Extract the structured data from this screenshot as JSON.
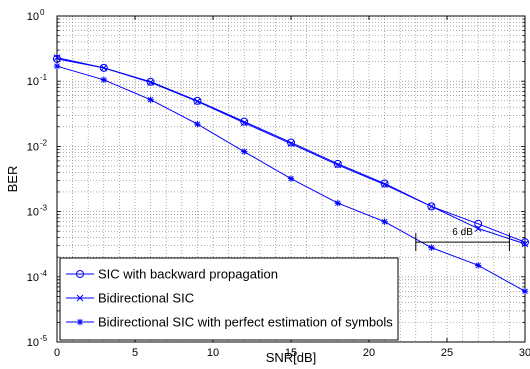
{
  "chart_data": {
    "type": "line",
    "xlabel": "SNR[dB]",
    "ylabel": "BER",
    "xlim": [
      0,
      30
    ],
    "ylim": [
      1e-05,
      1
    ],
    "yscale": "log",
    "grid": true,
    "legend_position": "bottom-left",
    "x_ticks": [
      0,
      5,
      10,
      15,
      20,
      25,
      30
    ],
    "x_tick_labels": [
      "0",
      "5",
      "10",
      "15",
      "20",
      "25",
      "30"
    ],
    "y_ticks": [
      1,
      0.1,
      0.01,
      0.001,
      0.0001,
      1e-05
    ],
    "y_tick_labels": [
      {
        "base": "10",
        "exp": "0"
      },
      {
        "base": "10",
        "exp": "-1"
      },
      {
        "base": "10",
        "exp": "-2"
      },
      {
        "base": "10",
        "exp": "-3"
      },
      {
        "base": "10",
        "exp": "-4"
      },
      {
        "base": "10",
        "exp": "-5"
      }
    ],
    "x": [
      0,
      3,
      6,
      9,
      12,
      15,
      18,
      21,
      24,
      27,
      30
    ],
    "series": [
      {
        "name": "SIC with backward propagation",
        "marker": "circle",
        "color": "#0000ff",
        "values": [
          0.22,
          0.16,
          0.098,
          0.05,
          0.024,
          0.0115,
          0.0054,
          0.0027,
          0.0012,
          0.00065,
          0.00034
        ]
      },
      {
        "name": "Bidirectional SIC",
        "marker": "x",
        "color": "#0000ff",
        "values": [
          0.23,
          0.16,
          0.096,
          0.049,
          0.023,
          0.011,
          0.0052,
          0.0026,
          0.0012,
          0.00055,
          0.00032
        ]
      },
      {
        "name": "Bidirectional SIC with perfect estimation of symbols",
        "marker": "star",
        "color": "#0000ff",
        "values": [
          0.17,
          0.105,
          0.052,
          0.022,
          0.0083,
          0.0032,
          0.00135,
          0.0007,
          0.00028,
          0.00015,
          6e-05
        ]
      }
    ],
    "annotation": {
      "text": "6 dB",
      "x_start": 23,
      "x_end": 29,
      "y": 0.00034
    }
  }
}
